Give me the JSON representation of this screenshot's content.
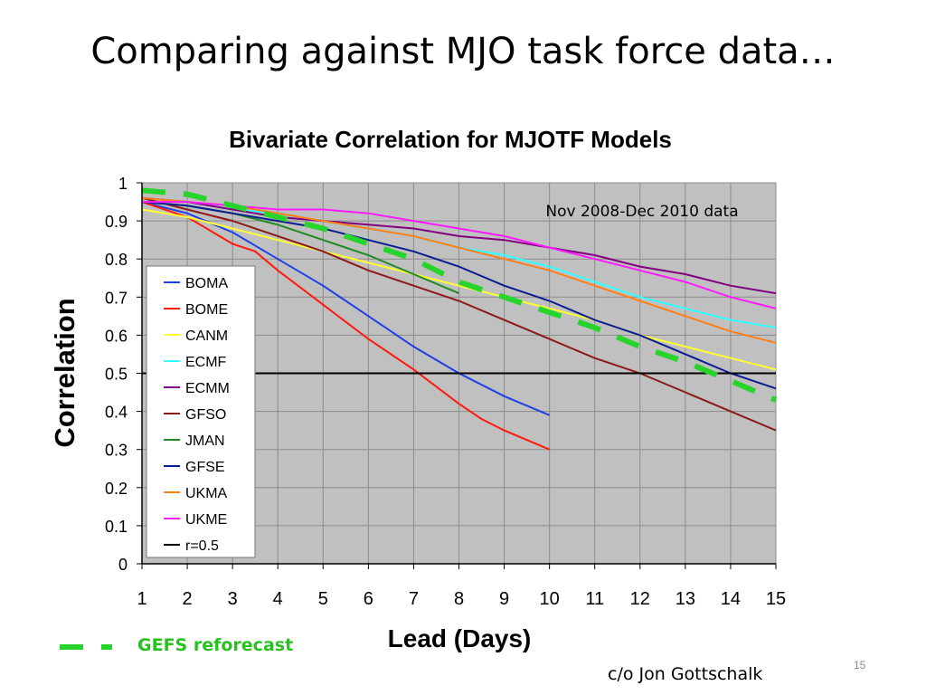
{
  "slide": {
    "title": "Comparing against MJO task force data…",
    "gefs_label": "GEFS reforecast",
    "credit": "c/o Jon Gottschalk",
    "page_number": "15"
  },
  "chart_data": {
    "type": "line",
    "title": "Bivariate Correlation for MJOTF Models",
    "xlabel": "Lead (Days)",
    "ylabel": "Correlation",
    "annotation": "Nov 2008-Dec 2010 data",
    "xlim": [
      1,
      15
    ],
    "ylim": [
      0,
      1
    ],
    "x_ticks": [
      "1",
      "2",
      "3",
      "4",
      "5",
      "6",
      "7",
      "8",
      "9",
      "10",
      "11",
      "12",
      "13",
      "14",
      "15"
    ],
    "y_ticks": [
      "0",
      "0.1",
      "0.2",
      "0.3",
      "0.4",
      "0.5",
      "0.6",
      "0.7",
      "0.8",
      "0.9",
      "1"
    ],
    "grid": true,
    "plot_background": "#c0c0c0",
    "legend_position": "left",
    "series": [
      {
        "name": "BOMA",
        "color": "#1f3fe8",
        "x": [
          1,
          2,
          3,
          4,
          5,
          6,
          7,
          8,
          9,
          10
        ],
        "y": [
          0.95,
          0.92,
          0.87,
          0.8,
          0.73,
          0.65,
          0.57,
          0.5,
          0.44,
          0.39
        ]
      },
      {
        "name": "BOME",
        "color": "#ff1a0d",
        "x": [
          1,
          2,
          3,
          3.5,
          4,
          5,
          6,
          7,
          8,
          8.5,
          9,
          10
        ],
        "y": [
          0.95,
          0.91,
          0.84,
          0.82,
          0.77,
          0.68,
          0.59,
          0.51,
          0.42,
          0.38,
          0.35,
          0.3
        ]
      },
      {
        "name": "CANM",
        "color": "#ffff33",
        "x": [
          1,
          2,
          3,
          4,
          5,
          6,
          7,
          8,
          9,
          10,
          11,
          12,
          13,
          14,
          15
        ],
        "y": [
          0.93,
          0.91,
          0.88,
          0.85,
          0.82,
          0.79,
          0.76,
          0.73,
          0.7,
          0.67,
          0.64,
          0.6,
          0.57,
          0.54,
          0.51
        ]
      },
      {
        "name": "ECMF",
        "color": "#33ffff",
        "x": [
          1,
          2,
          3,
          4,
          5,
          6,
          7,
          8,
          9,
          10,
          11,
          12,
          13,
          14,
          15
        ],
        "y": [
          0.96,
          0.95,
          0.93,
          0.92,
          0.9,
          0.88,
          0.86,
          0.83,
          0.81,
          0.78,
          0.74,
          0.7,
          0.67,
          0.64,
          0.62
        ]
      },
      {
        "name": "ECMM",
        "color": "#800080",
        "x": [
          1,
          2,
          3,
          4,
          5,
          6,
          7,
          8,
          9,
          10,
          11,
          12,
          13,
          14,
          15
        ],
        "y": [
          0.96,
          0.95,
          0.93,
          0.91,
          0.9,
          0.89,
          0.88,
          0.86,
          0.85,
          0.83,
          0.81,
          0.78,
          0.76,
          0.73,
          0.71
        ]
      },
      {
        "name": "GFSO",
        "color": "#8b1a1a",
        "x": [
          1,
          2,
          3,
          4,
          5,
          6,
          7,
          8,
          9,
          10,
          11,
          12,
          13,
          14,
          15
        ],
        "y": [
          0.96,
          0.93,
          0.9,
          0.86,
          0.82,
          0.77,
          0.73,
          0.69,
          0.64,
          0.59,
          0.54,
          0.5,
          0.45,
          0.4,
          0.35
        ]
      },
      {
        "name": "JMAN",
        "color": "#1f8a1f",
        "x": [
          1,
          2,
          3,
          4,
          5,
          6,
          7,
          8
        ],
        "y": [
          0.95,
          0.94,
          0.92,
          0.89,
          0.85,
          0.81,
          0.76,
          0.71
        ]
      },
      {
        "name": "GFSE",
        "color": "#0a1d8f",
        "x": [
          1,
          2,
          3,
          4,
          5,
          6,
          7,
          8,
          9,
          10,
          11,
          12,
          13,
          14,
          15
        ],
        "y": [
          0.95,
          0.94,
          0.92,
          0.9,
          0.88,
          0.85,
          0.82,
          0.78,
          0.73,
          0.69,
          0.64,
          0.6,
          0.55,
          0.5,
          0.46
        ]
      },
      {
        "name": "UKMA",
        "color": "#ff7f1a",
        "x": [
          1,
          2,
          3,
          4,
          5,
          6,
          7,
          8,
          9,
          10,
          11,
          12,
          13,
          14,
          15
        ],
        "y": [
          0.96,
          0.95,
          0.94,
          0.92,
          0.9,
          0.88,
          0.86,
          0.83,
          0.8,
          0.77,
          0.73,
          0.69,
          0.65,
          0.61,
          0.58
        ]
      },
      {
        "name": "UKME",
        "color": "#ff1aff",
        "x": [
          1,
          2,
          3,
          4,
          5,
          6,
          7,
          8,
          9,
          10,
          11,
          12,
          13,
          14,
          15
        ],
        "y": [
          0.95,
          0.95,
          0.94,
          0.93,
          0.93,
          0.92,
          0.9,
          0.88,
          0.86,
          0.83,
          0.8,
          0.77,
          0.74,
          0.7,
          0.67
        ]
      },
      {
        "name": "r=0.5",
        "color": "#000000",
        "x": [
          1,
          15
        ],
        "y": [
          0.5,
          0.5
        ]
      }
    ],
    "gefs_reforecast": {
      "color": "#27d42b",
      "x": [
        1,
        2,
        3,
        4,
        5,
        6,
        7,
        8,
        9,
        10,
        11,
        12,
        13,
        14,
        15
      ],
      "y": [
        0.98,
        0.97,
        0.94,
        0.91,
        0.88,
        0.84,
        0.8,
        0.74,
        0.7,
        0.66,
        0.62,
        0.57,
        0.53,
        0.48,
        0.43
      ]
    }
  }
}
